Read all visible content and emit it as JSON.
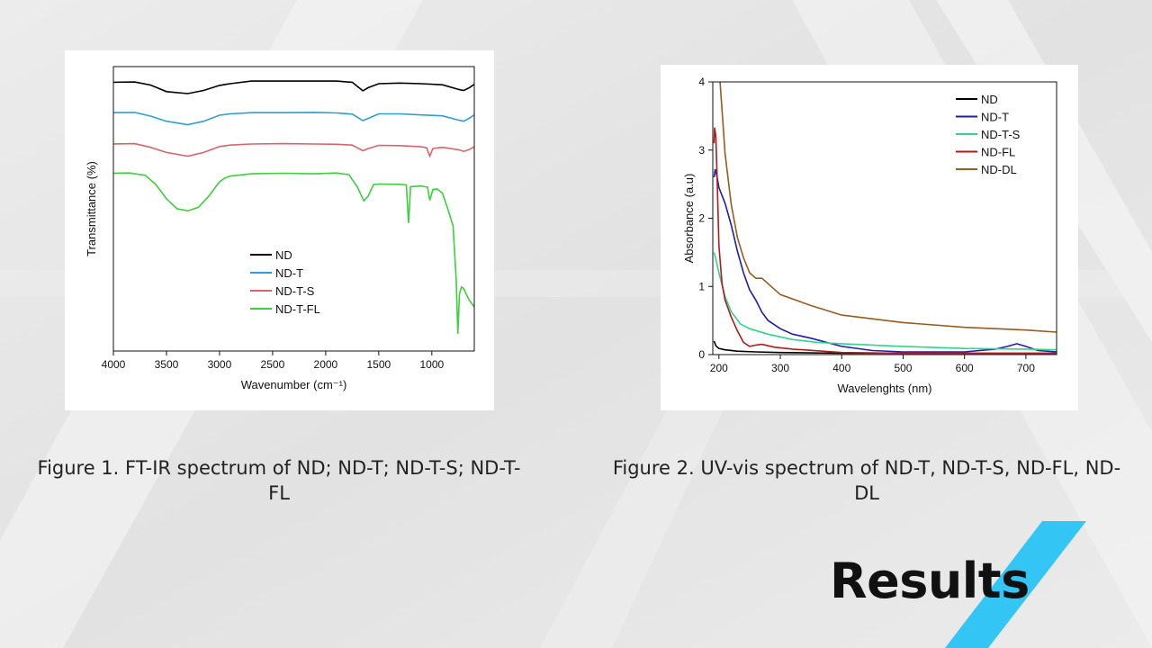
{
  "slide": {
    "caption_1": "Figure 1. FT-IR spectrum of ND; ND-T; ND-T-S; ND-T-FL",
    "caption_2": "Figure 2. UV-vis spectrum of ND-T, ND-T-S, ND-FL, ND-DL",
    "section_title": "Results",
    "accent_color": "#33c6f4"
  },
  "chart_data": [
    {
      "type": "line",
      "xlabel": "Wavenumber (cm⁻¹)",
      "ylabel": "Transmittance (%)",
      "xlim": [
        4000,
        600
      ],
      "x_reversed": true,
      "y_ticks_shown": false,
      "x_ticks": [
        4000,
        3500,
        3000,
        2500,
        2000,
        1500,
        1000
      ],
      "legend_position": "center",
      "series": [
        {
          "name": "ND",
          "color": "#000000",
          "points": [
            [
              4000,
              94.5
            ],
            [
              3800,
              94.6
            ],
            [
              3650,
              93.5
            ],
            [
              3500,
              91.2
            ],
            [
              3300,
              90.5
            ],
            [
              3150,
              91.6
            ],
            [
              3000,
              93.4
            ],
            [
              2900,
              94.0
            ],
            [
              2700,
              94.9
            ],
            [
              2400,
              94.9
            ],
            [
              2100,
              94.9
            ],
            [
              1900,
              94.9
            ],
            [
              1750,
              94.5
            ],
            [
              1650,
              91.5
            ],
            [
              1600,
              92.6
            ],
            [
              1500,
              94.0
            ],
            [
              1300,
              94.2
            ],
            [
              1100,
              94.0
            ],
            [
              900,
              93.6
            ],
            [
              750,
              92.0
            ],
            [
              700,
              91.6
            ],
            [
              650,
              92.5
            ],
            [
              600,
              93.8
            ]
          ]
        },
        {
          "name": "ND-T",
          "color": "#2b9fd6",
          "points": [
            [
              4000,
              83.8
            ],
            [
              3800,
              83.9
            ],
            [
              3650,
              82.6
            ],
            [
              3500,
              80.8
            ],
            [
              3300,
              79.6
            ],
            [
              3150,
              80.8
            ],
            [
              3000,
              82.9
            ],
            [
              2900,
              83.4
            ],
            [
              2700,
              83.8
            ],
            [
              2400,
              83.8
            ],
            [
              2100,
              83.9
            ],
            [
              1900,
              83.7
            ],
            [
              1750,
              83.3
            ],
            [
              1650,
              81.0
            ],
            [
              1600,
              81.8
            ],
            [
              1500,
              83.4
            ],
            [
              1300,
              83.4
            ],
            [
              1100,
              83.0
            ],
            [
              900,
              82.7
            ],
            [
              750,
              81.2
            ],
            [
              700,
              80.8
            ],
            [
              650,
              81.8
            ],
            [
              600,
              83.0
            ]
          ]
        },
        {
          "name": "ND-T-S",
          "color": "#d9636b",
          "points": [
            [
              4000,
              72.8
            ],
            [
              3800,
              72.9
            ],
            [
              3650,
              71.6
            ],
            [
              3500,
              69.8
            ],
            [
              3300,
              68.5
            ],
            [
              3150,
              69.8
            ],
            [
              3000,
              71.9
            ],
            [
              2900,
              72.4
            ],
            [
              2700,
              72.8
            ],
            [
              2400,
              72.9
            ],
            [
              2100,
              72.8
            ],
            [
              1900,
              72.7
            ],
            [
              1750,
              72.4
            ],
            [
              1650,
              70.4
            ],
            [
              1600,
              71.2
            ],
            [
              1500,
              72.3
            ],
            [
              1300,
              72.2
            ],
            [
              1100,
              71.8
            ],
            [
              1050,
              71.5
            ],
            [
              1020,
              68.5
            ],
            [
              990,
              71.2
            ],
            [
              900,
              71.6
            ],
            [
              750,
              70.8
            ],
            [
              700,
              70.2
            ],
            [
              650,
              70.8
            ],
            [
              600,
              71.8
            ]
          ]
        },
        {
          "name": "ND-T-FL",
          "color": "#3ad13a",
          "points": [
            [
              4000,
              62.5
            ],
            [
              3850,
              62.6
            ],
            [
              3700,
              61.8
            ],
            [
              3600,
              58.5
            ],
            [
              3500,
              53.5
            ],
            [
              3400,
              50.0
            ],
            [
              3300,
              49.3
            ],
            [
              3200,
              50.5
            ],
            [
              3100,
              54.5
            ],
            [
              3050,
              57.0
            ],
            [
              3000,
              59.5
            ],
            [
              2950,
              60.8
            ],
            [
              2900,
              61.5
            ],
            [
              2700,
              62.3
            ],
            [
              2400,
              62.5
            ],
            [
              2100,
              62.3
            ],
            [
              1900,
              62.6
            ],
            [
              1780,
              62.0
            ],
            [
              1700,
              57.5
            ],
            [
              1640,
              52.8
            ],
            [
              1600,
              54.5
            ],
            [
              1550,
              58.5
            ],
            [
              1500,
              58.7
            ],
            [
              1300,
              58.6
            ],
            [
              1240,
              58.4
            ],
            [
              1220,
              45.0
            ],
            [
              1200,
              57.8
            ],
            [
              1100,
              58.0
            ],
            [
              1040,
              57.6
            ],
            [
              1020,
              53.0
            ],
            [
              990,
              56.8
            ],
            [
              950,
              57.0
            ],
            [
              900,
              55.5
            ],
            [
              850,
              50.0
            ],
            [
              800,
              44.0
            ],
            [
              770,
              25.0
            ],
            [
              755,
              6.0
            ],
            [
              740,
              20.0
            ],
            [
              720,
              22.5
            ],
            [
              700,
              22.0
            ],
            [
              650,
              18.0
            ],
            [
              600,
              15.5
            ]
          ]
        }
      ]
    },
    {
      "type": "line",
      "xlabel": "Wavelenghts (nm)",
      "ylabel": "Absorbance (a.u)",
      "xlim": [
        190,
        750
      ],
      "ylim": [
        0,
        4
      ],
      "x_ticks": [
        200,
        300,
        400,
        500,
        600,
        700
      ],
      "y_ticks": [
        0,
        1,
        2,
        3,
        4
      ],
      "legend_position": "top-right",
      "series": [
        {
          "name": "ND",
          "color": "#000000",
          "points": [
            [
              192,
              0.2
            ],
            [
              195,
              0.13
            ],
            [
              200,
              0.09
            ],
            [
              210,
              0.07
            ],
            [
              230,
              0.05
            ],
            [
              260,
              0.04
            ],
            [
              300,
              0.03
            ],
            [
              400,
              0.02
            ],
            [
              500,
              0.02
            ],
            [
              600,
              0.02
            ],
            [
              750,
              0.02
            ]
          ]
        },
        {
          "name": "ND-T",
          "color": "#1e1ea8",
          "points": [
            [
              192,
              2.6
            ],
            [
              194,
              2.72
            ],
            [
              197,
              2.6
            ],
            [
              200,
              2.45
            ],
            [
              210,
              2.22
            ],
            [
              220,
              1.9
            ],
            [
              230,
              1.52
            ],
            [
              240,
              1.2
            ],
            [
              250,
              0.95
            ],
            [
              260,
              0.8
            ],
            [
              270,
              0.62
            ],
            [
              280,
              0.5
            ],
            [
              300,
              0.38
            ],
            [
              320,
              0.3
            ],
            [
              350,
              0.24
            ],
            [
              400,
              0.12
            ],
            [
              450,
              0.06
            ],
            [
              500,
              0.04
            ],
            [
              600,
              0.04
            ],
            [
              650,
              0.08
            ],
            [
              670,
              0.12
            ],
            [
              685,
              0.16
            ],
            [
              700,
              0.12
            ],
            [
              720,
              0.06
            ],
            [
              750,
              0.04
            ]
          ]
        },
        {
          "name": "ND-T-S",
          "color": "#2ed58b",
          "points": [
            [
              192,
              1.5
            ],
            [
              195,
              1.4
            ],
            [
              200,
              1.2
            ],
            [
              210,
              0.85
            ],
            [
              220,
              0.63
            ],
            [
              235,
              0.45
            ],
            [
              250,
              0.38
            ],
            [
              280,
              0.3
            ],
            [
              320,
              0.22
            ],
            [
              360,
              0.18
            ],
            [
              400,
              0.16
            ],
            [
              450,
              0.14
            ],
            [
              500,
              0.12
            ],
            [
              600,
              0.09
            ],
            [
              700,
              0.08
            ],
            [
              750,
              0.07
            ]
          ]
        },
        {
          "name": "ND-FL",
          "color": "#b01c1c",
          "points": [
            [
              192,
              3.1
            ],
            [
              193,
              3.33
            ],
            [
              195,
              3.2
            ],
            [
              197,
              2.6
            ],
            [
              200,
              1.6
            ],
            [
              205,
              1.05
            ],
            [
              210,
              0.8
            ],
            [
              220,
              0.55
            ],
            [
              230,
              0.35
            ],
            [
              240,
              0.18
            ],
            [
              250,
              0.12
            ],
            [
              260,
              0.14
            ],
            [
              270,
              0.15
            ],
            [
              290,
              0.11
            ],
            [
              320,
              0.08
            ],
            [
              400,
              0.03
            ],
            [
              500,
              0.02
            ],
            [
              750,
              0.02
            ]
          ]
        },
        {
          "name": "ND-DL",
          "color": "#9b5a1e",
          "points": [
            [
              201,
              4.1
            ],
            [
              205,
              3.6
            ],
            [
              210,
              2.95
            ],
            [
              220,
              2.2
            ],
            [
              230,
              1.72
            ],
            [
              240,
              1.42
            ],
            [
              250,
              1.2
            ],
            [
              260,
              1.12
            ],
            [
              270,
              1.12
            ],
            [
              280,
              1.04
            ],
            [
              300,
              0.88
            ],
            [
              350,
              0.72
            ],
            [
              400,
              0.58
            ],
            [
              500,
              0.47
            ],
            [
              600,
              0.4
            ],
            [
              700,
              0.36
            ],
            [
              750,
              0.33
            ]
          ]
        }
      ]
    }
  ]
}
